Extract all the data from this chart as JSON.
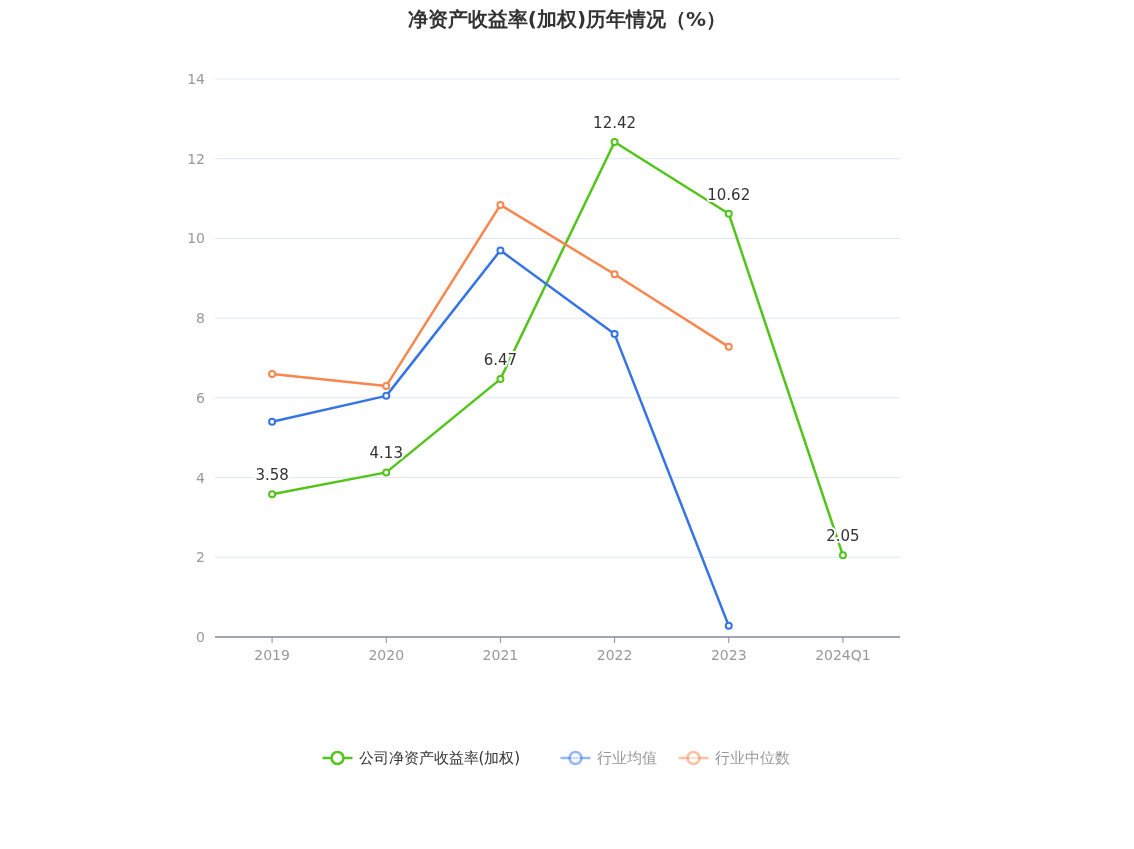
{
  "chart_data": {
    "type": "line",
    "title": "净资产收益率(加权)历年情况（%）",
    "categories": [
      "2019",
      "2020",
      "2021",
      "2022",
      "2023",
      "2024Q1"
    ],
    "series": [
      {
        "name": "公司净资产收益率(加权)",
        "color": "#52c41a",
        "values": [
          3.58,
          4.13,
          6.47,
          12.42,
          10.62,
          2.05
        ],
        "value_labels": [
          "3.58",
          "4.13",
          "6.47",
          "12.42",
          "10.62",
          "2.05"
        ]
      },
      {
        "name": "行业均值",
        "color": "#3574e4",
        "values": [
          5.4,
          6.05,
          9.7,
          7.6,
          0.28,
          null
        ]
      },
      {
        "name": "行业中位数",
        "color": "#f7864f",
        "values": [
          6.6,
          6.3,
          10.84,
          9.1,
          7.28,
          null
        ]
      }
    ],
    "ylim": [
      0,
      14
    ],
    "yticks": [
      0,
      2,
      4,
      6,
      8,
      10,
      12,
      14
    ],
    "grid": "y",
    "legend": "bottom",
    "marker": "circle",
    "line_style": "solid"
  }
}
